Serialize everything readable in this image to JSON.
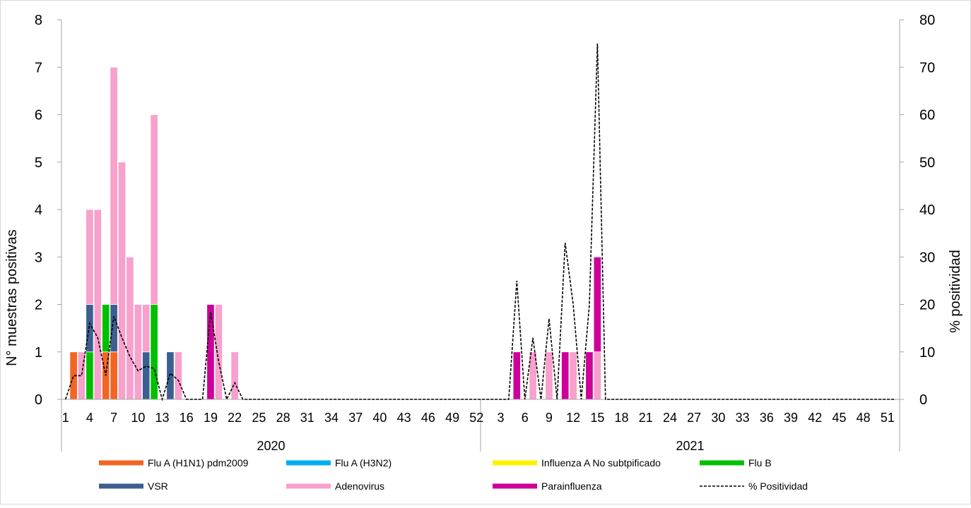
{
  "chart_data": {
    "type": "bar",
    "stacked": true,
    "secondary_type": "line",
    "ylabel_left": "N° muestras positivas",
    "ylabel_right": "% positividad",
    "ylim_left": [
      0,
      8
    ],
    "ylim_right": [
      0,
      80
    ],
    "yticks_left": [
      "0",
      "1",
      "2",
      "3",
      "4",
      "5",
      "6",
      "7",
      "8"
    ],
    "yticks_right": [
      "0",
      "10",
      "20",
      "30",
      "40",
      "50",
      "60",
      "70",
      "80"
    ],
    "grid": false,
    "legend_position": "bottom",
    "year_labels": [
      {
        "label": "2020",
        "start_week": 1,
        "end_week": 52
      },
      {
        "label": "2021",
        "start_week": 1,
        "end_week": 52
      }
    ],
    "x_tick_labels": [
      "1",
      "4",
      "7",
      "10",
      "13",
      "16",
      "19",
      "22",
      "25",
      "28",
      "31",
      "34",
      "37",
      "40",
      "43",
      "46",
      "49",
      "52",
      "3",
      "6",
      "9",
      "12",
      "15",
      "18",
      "21",
      "24",
      "27",
      "30",
      "33",
      "36",
      "39",
      "42",
      "45",
      "48",
      "51"
    ],
    "series": [
      {
        "name": "Flu A (H1N1) pdm2009",
        "color": "#F26522",
        "points": [
          {
            "year": 2020,
            "week": 2,
            "value": 1
          },
          {
            "year": 2020,
            "week": 6,
            "value": 1
          },
          {
            "year": 2020,
            "week": 7,
            "value": 1
          }
        ]
      },
      {
        "name": "Flu A (H3N2)",
        "color": "#00AEEF",
        "points": []
      },
      {
        "name": "Influenza A No subtpificado",
        "color": "#FFF200",
        "points": []
      },
      {
        "name": "Flu B",
        "color": "#00C000",
        "points": [
          {
            "year": 2020,
            "week": 4,
            "value": 1
          },
          {
            "year": 2020,
            "week": 6,
            "value": 1
          },
          {
            "year": 2020,
            "week": 12,
            "value": 2
          }
        ]
      },
      {
        "name": "VSR",
        "color": "#3B5F8F",
        "points": [
          {
            "year": 2020,
            "week": 4,
            "value": 1
          },
          {
            "year": 2020,
            "week": 7,
            "value": 1
          },
          {
            "year": 2020,
            "week": 11,
            "value": 1
          },
          {
            "year": 2020,
            "week": 14,
            "value": 1
          }
        ]
      },
      {
        "name": "Adenovirus",
        "color": "#F7A1CC",
        "points": [
          {
            "year": 2020,
            "week": 3,
            "value": 1
          },
          {
            "year": 2020,
            "week": 4,
            "value": 2
          },
          {
            "year": 2020,
            "week": 5,
            "value": 4
          },
          {
            "year": 2020,
            "week": 7,
            "value": 5
          },
          {
            "year": 2020,
            "week": 8,
            "value": 5
          },
          {
            "year": 2020,
            "week": 9,
            "value": 3
          },
          {
            "year": 2020,
            "week": 10,
            "value": 2
          },
          {
            "year": 2020,
            "week": 11,
            "value": 1
          },
          {
            "year": 2020,
            "week": 12,
            "value": 4
          },
          {
            "year": 2020,
            "week": 15,
            "value": 1
          },
          {
            "year": 2020,
            "week": 20,
            "value": 2
          },
          {
            "year": 2020,
            "week": 22,
            "value": 1
          },
          {
            "year": 2021,
            "week": 7,
            "value": 1
          },
          {
            "year": 2021,
            "week": 9,
            "value": 1
          },
          {
            "year": 2021,
            "week": 12,
            "value": 1
          },
          {
            "year": 2021,
            "week": 15,
            "value": 1
          }
        ]
      },
      {
        "name": "Parainfluenza",
        "color": "#CC0099",
        "points": [
          {
            "year": 2020,
            "week": 19,
            "value": 2
          },
          {
            "year": 2021,
            "week": 5,
            "value": 1
          },
          {
            "year": 2021,
            "week": 11,
            "value": 1
          },
          {
            "year": 2021,
            "week": 14,
            "value": 1
          },
          {
            "year": 2021,
            "week": 15,
            "value": 2
          }
        ]
      }
    ],
    "line_series": {
      "name": "% Positividad",
      "color": "#000000",
      "dashed": true,
      "points": [
        {
          "year": 2020,
          "week": 1,
          "value": 0
        },
        {
          "year": 2020,
          "week": 2,
          "value": 5
        },
        {
          "year": 2020,
          "week": 3,
          "value": 5
        },
        {
          "year": 2020,
          "week": 4,
          "value": 16
        },
        {
          "year": 2020,
          "week": 5,
          "value": 13
        },
        {
          "year": 2020,
          "week": 6,
          "value": 5
        },
        {
          "year": 2020,
          "week": 7,
          "value": 17.5
        },
        {
          "year": 2020,
          "week": 8,
          "value": 13
        },
        {
          "year": 2020,
          "week": 9,
          "value": 9
        },
        {
          "year": 2020,
          "week": 10,
          "value": 6
        },
        {
          "year": 2020,
          "week": 11,
          "value": 7
        },
        {
          "year": 2020,
          "week": 12,
          "value": 6.5
        },
        {
          "year": 2020,
          "week": 13,
          "value": 0
        },
        {
          "year": 2020,
          "week": 14,
          "value": 5.5
        },
        {
          "year": 2020,
          "week": 15,
          "value": 4
        },
        {
          "year": 2020,
          "week": 16,
          "value": 0
        },
        {
          "year": 2020,
          "week": 17,
          "value": 0
        },
        {
          "year": 2020,
          "week": 18,
          "value": 0
        },
        {
          "year": 2020,
          "week": 19,
          "value": 18.5
        },
        {
          "year": 2020,
          "week": 20,
          "value": 8
        },
        {
          "year": 2020,
          "week": 21,
          "value": 0
        },
        {
          "year": 2020,
          "week": 22,
          "value": 3.5
        },
        {
          "year": 2020,
          "week": 23,
          "value": 0
        },
        {
          "year": 2021,
          "week": 3,
          "value": 0
        },
        {
          "year": 2021,
          "week": 4,
          "value": 0
        },
        {
          "year": 2021,
          "week": 5,
          "value": 25
        },
        {
          "year": 2021,
          "week": 6,
          "value": 0
        },
        {
          "year": 2021,
          "week": 7,
          "value": 13
        },
        {
          "year": 2021,
          "week": 8,
          "value": 0
        },
        {
          "year": 2021,
          "week": 9,
          "value": 17
        },
        {
          "year": 2021,
          "week": 10,
          "value": 0
        },
        {
          "year": 2021,
          "week": 11,
          "value": 33
        },
        {
          "year": 2021,
          "week": 12,
          "value": 20
        },
        {
          "year": 2021,
          "week": 13,
          "value": 0
        },
        {
          "year": 2021,
          "week": 14,
          "value": 20
        },
        {
          "year": 2021,
          "week": 15,
          "value": 75
        },
        {
          "year": 2021,
          "week": 16,
          "value": 0
        },
        {
          "year": 2021,
          "week": 52,
          "value": 0
        }
      ]
    },
    "legend": [
      {
        "label": "Flu A (H1N1) pdm2009",
        "color": "#F26522",
        "style": "solid"
      },
      {
        "label": "Flu A (H3N2)",
        "color": "#00AEEF",
        "style": "solid"
      },
      {
        "label": "Influenza A No subtpificado",
        "color": "#FFF200",
        "style": "solid"
      },
      {
        "label": "Flu B",
        "color": "#00C000",
        "style": "solid"
      },
      {
        "label": "VSR",
        "color": "#3B5F8F",
        "style": "solid"
      },
      {
        "label": "Adenovirus",
        "color": "#F7A1CC",
        "style": "solid"
      },
      {
        "label": "Parainfluenza",
        "color": "#CC0099",
        "style": "solid"
      },
      {
        "label": "% Positividad",
        "color": "#000000",
        "style": "dashed"
      }
    ]
  }
}
